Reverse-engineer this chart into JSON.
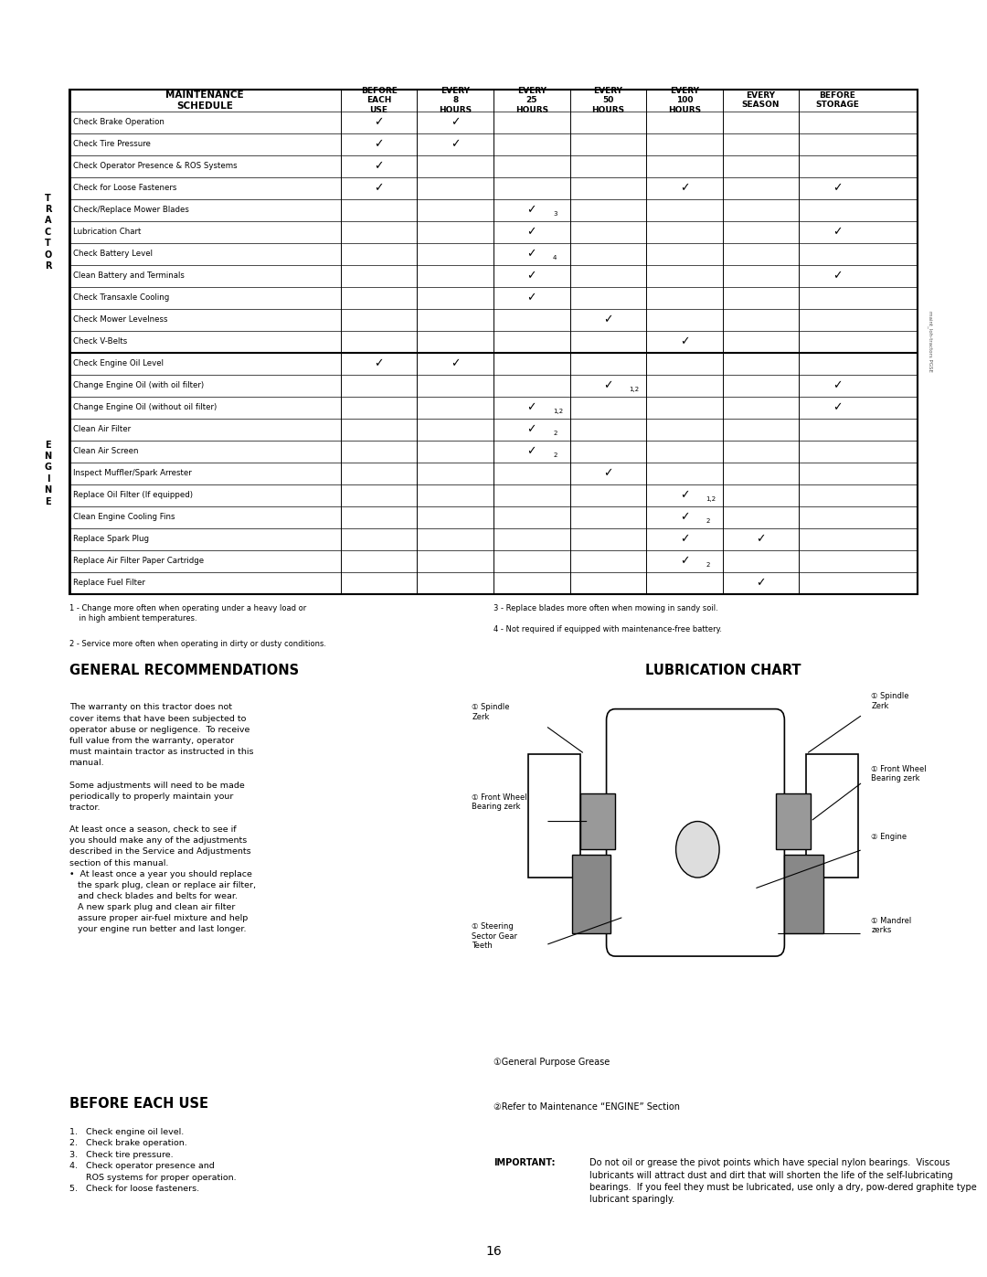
{
  "title": "MAINTENANCE",
  "title_bg": "#1a1a1a",
  "title_color": "#ffffff",
  "page_bg": "#ffffff",
  "table_header": [
    "MAINTENANCE\nSCHEDULE",
    "BEFORE\nEACH\nUSE",
    "EVERY\n8\nHOURS",
    "EVERY\n25\nHOURS",
    "EVERY\n50\nHOURS",
    "EVERY\n100\nHOURS",
    "EVERY\nSEASON",
    "BEFORE\nSTORAGE"
  ],
  "tractor_rows": [
    [
      "Check Brake Operation",
      1,
      1,
      0,
      0,
      0,
      0,
      0
    ],
    [
      "Check Tire Pressure",
      1,
      1,
      0,
      0,
      0,
      0,
      0
    ],
    [
      "Check Operator Presence & ROS Systems",
      1,
      0,
      0,
      0,
      0,
      0,
      0
    ],
    [
      "Check for Loose Fasteners",
      1,
      0,
      0,
      0,
      1,
      0,
      1
    ],
    [
      "Check/Replace Mower Blades",
      0,
      0,
      "3",
      0,
      0,
      0,
      0
    ],
    [
      "Lubrication Chart",
      0,
      0,
      1,
      0,
      0,
      0,
      1
    ],
    [
      "Check Battery Level",
      0,
      0,
      "4",
      0,
      0,
      0,
      0
    ],
    [
      "Clean Battery and Terminals",
      0,
      0,
      1,
      0,
      0,
      0,
      1
    ],
    [
      "Check Transaxle Cooling",
      0,
      0,
      1,
      0,
      0,
      0,
      0
    ],
    [
      "Check Mower Levelness",
      0,
      0,
      0,
      1,
      0,
      0,
      0
    ],
    [
      "Check V-Belts",
      0,
      0,
      0,
      0,
      1,
      0,
      0
    ]
  ],
  "engine_rows": [
    [
      "Check Engine Oil Level",
      1,
      1,
      0,
      0,
      0,
      0,
      0
    ],
    [
      "Change Engine Oil (with oil filter)",
      0,
      0,
      0,
      "1,2",
      0,
      0,
      1
    ],
    [
      "Change Engine Oil (without oil filter)",
      0,
      0,
      "1,2",
      0,
      0,
      0,
      1
    ],
    [
      "Clean Air Filter",
      0,
      0,
      "2",
      0,
      0,
      0,
      0
    ],
    [
      "Clean Air Screen",
      0,
      0,
      "2",
      0,
      0,
      0,
      0
    ],
    [
      "Inspect Muffler/Spark Arrester",
      0,
      0,
      0,
      1,
      0,
      0,
      0
    ],
    [
      "Replace Oil Filter (If equipped)",
      0,
      0,
      0,
      0,
      "1,2",
      0,
      0
    ],
    [
      "Clean Engine Cooling Fins",
      0,
      0,
      0,
      0,
      "2",
      0,
      0
    ],
    [
      "Replace Spark Plug",
      0,
      0,
      0,
      0,
      1,
      1,
      0
    ],
    [
      "Replace Air Filter Paper Cartridge",
      0,
      0,
      0,
      0,
      "2",
      0,
      0
    ],
    [
      "Replace Fuel Filter",
      0,
      0,
      0,
      0,
      0,
      1,
      0
    ]
  ],
  "tractor_letter": "TRACTOR",
  "engine_letter": "ENGINE",
  "footnotes": [
    "1 - Change more often when operating under a heavy load or\n    in high ambient temperatures.",
    "2 - Service more often when operating in dirty or dusty conditions.",
    "3 - Replace blades more often when mowing in sandy soil.",
    "4 - Not required if equipped with maintenance-free battery."
  ],
  "gen_rec_title": "GENERAL RECOMMENDATIONS",
  "gen_rec_body": "The warranty on this tractor does not\ncover items that have been subjected to\noperator abuse or negligence.  To receive\nfull value from the warranty, operator\nmust maintain tractor as instructed in this\nmanual.\n\nSome adjustments will need to be made\nperiodically to properly maintain your\ntractor.\n\nAt least once a season, check to see if\nyou should make any of the adjustments\ndescribed in the Service and Adjustments\nsection of this manual.\n•  At least once a year you should replace\n   the spark plug, clean or replace air filter,\n   and check blades and belts for wear.\n   A new spark plug and clean air filter\n   assure proper air-fuel mixture and help\n   your engine run better and last longer.",
  "before_each_title": "BEFORE EACH USE",
  "before_each_body": "1.   Check engine oil level.\n2.   Check brake operation.\n3.   Check tire pressure.\n4.   Check operator presence and\n      ROS systems for proper operation.\n5.   Check for loose fasteners.",
  "lub_chart_title": "LUBRICATION CHART",
  "lub_labels": [
    [
      "① Spindle\nZerk",
      "left"
    ],
    [
      "① Front Wheel\nBearing zerk",
      "left"
    ],
    [
      "① Steering\nSector Gear\nTeeth",
      "left"
    ],
    [
      "① Spindle\nZerk",
      "right"
    ],
    [
      "① Front Wheel\nBearing zerk",
      "right"
    ],
    [
      "② Engine",
      "right"
    ],
    [
      "① Mandrel\nzerks",
      "right"
    ]
  ],
  "lub_note1": "①General Purpose Grease",
  "lub_note2": "②Refer to Maintenance “ENGINE” Section",
  "important_text": "IMPORTANT:  Do not oil or grease the pivot points which have special nylon bearings.  Viscous lubricants will attract dust and dirt that will shorten the life of the self-lubricating bearings.  If you feel they must be lubricated, use only a dry, pow-dered graphite type lubricant sparingly.",
  "page_number": "16"
}
